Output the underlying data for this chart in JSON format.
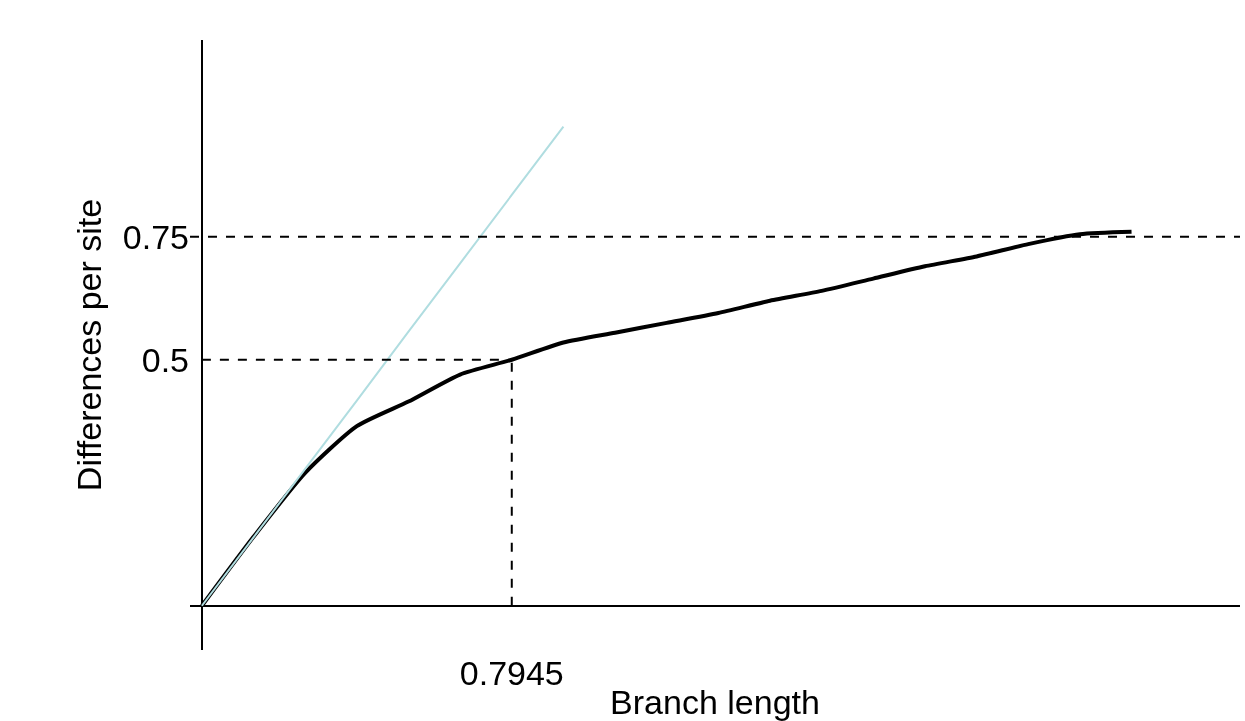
{
  "chart_data": {
    "type": "line",
    "xlabel": "Branch length",
    "ylabel": "Differences per site",
    "categories": [
      null,
      null,
      null,
      null,
      null,
      null,
      "0.7945",
      null,
      null,
      null,
      null,
      null,
      null,
      null,
      null,
      null,
      null,
      null,
      null
    ],
    "ylim": [
      -0.09,
      1.15
    ],
    "yticks": [
      {
        "value": 0,
        "label": null
      },
      {
        "value": 0.5,
        "label": "0.5"
      },
      {
        "value": 0.75,
        "label": "0.75"
      }
    ],
    "legend": false,
    "marker": "none",
    "ref_lines": [
      {
        "axis": "y",
        "value": 0.75,
        "color": "#000000",
        "line_style": "dashed"
      }
    ],
    "series": [
      {
        "color": "#000000",
        "line_style": "solid",
        "values": [
          0,
          0.14,
          0.27,
          0.365,
          0.415,
          0.47,
          0.5,
          0.535,
          0.555,
          0.575,
          0.595,
          0.62,
          0.64,
          0.665,
          0.69,
          0.71,
          0.735,
          0.755,
          0.76
        ]
      },
      {
        "color": "#b0dde0",
        "line_style": "solid",
        "values": [
          0,
          0.139,
          0.278,
          0.417,
          0.557,
          0.696,
          0.835,
          0.974,
          null,
          null,
          null,
          null,
          null,
          null,
          null,
          null,
          null,
          null,
          null
        ]
      },
      {
        "color": "#000000",
        "line_style": "dashed",
        "values": [
          0.5,
          0.5,
          0.5,
          0.5,
          0.5,
          0.5,
          0.5,
          null,
          null,
          null,
          null,
          null,
          null,
          null,
          null,
          null,
          null,
          null,
          null
        ]
      },
      {
        "color": "#000000",
        "line_style": "dashed",
        "x": [
          "0.7945",
          "0.7945"
        ],
        "values": [
          0,
          0.5
        ]
      }
    ]
  }
}
